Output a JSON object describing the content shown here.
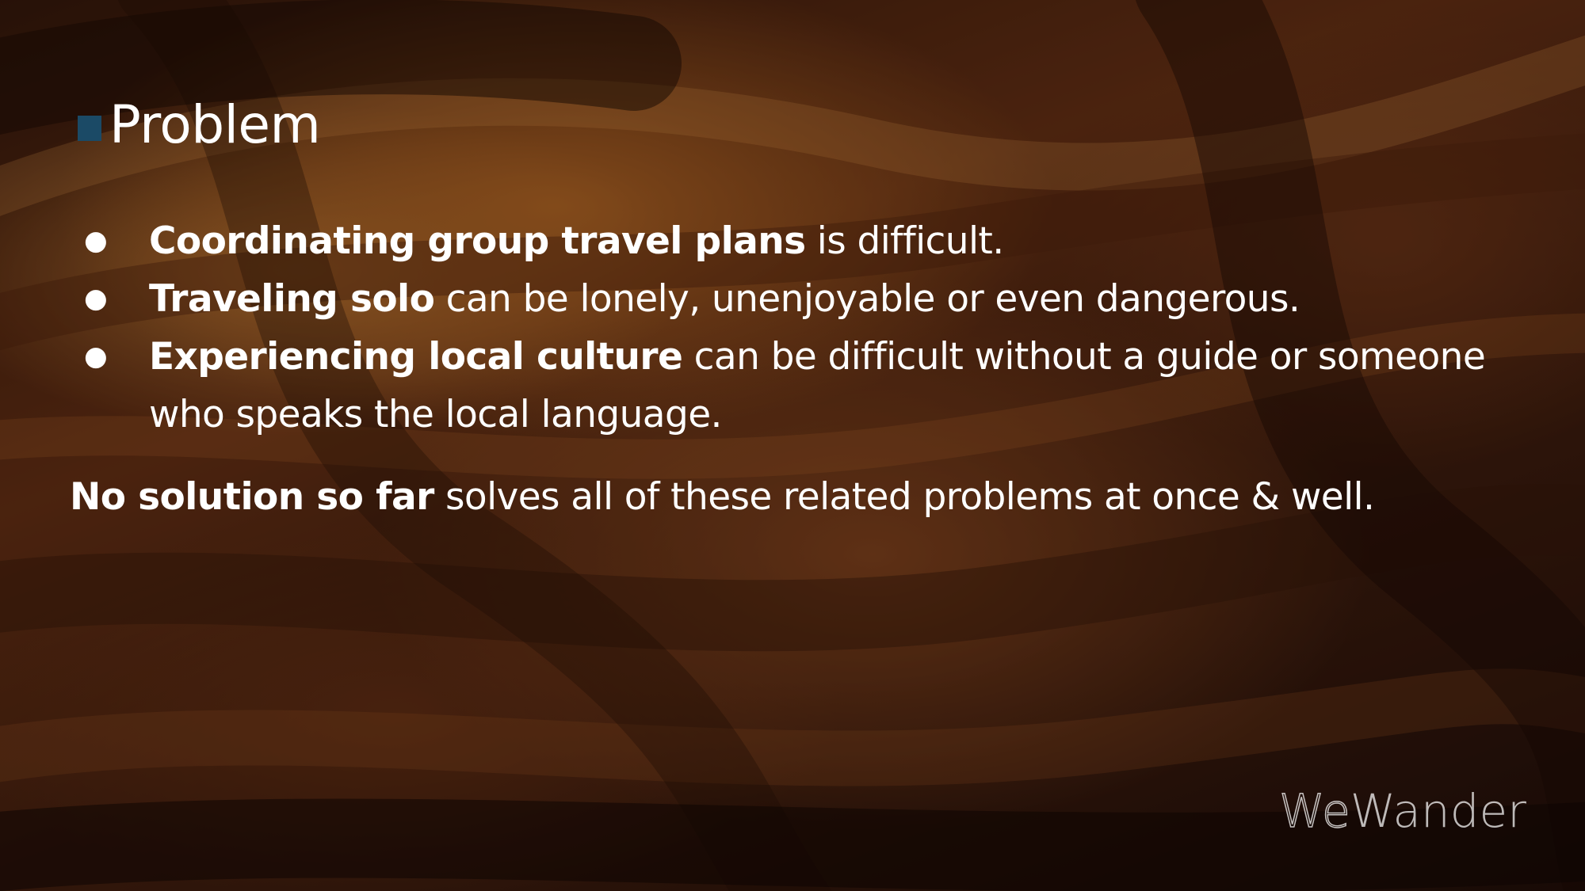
{
  "slide": {
    "title": "Problem",
    "marker_color": "#1b4a66",
    "bullets": [
      {
        "bold": "Coordinating group travel plans",
        "rest": " is difficult."
      },
      {
        "bold": "Traveling solo",
        "rest": " can be lonely, unenjoyable or even dangerous."
      },
      {
        "bold": "Experiencing local culture",
        "rest": " can be difficult without a guide or someone who speaks the local language."
      }
    ],
    "bullet_glyph": "●",
    "summary": {
      "bold": "No solution so far",
      "rest": " solves all of these related problems at once & well."
    },
    "logo": {
      "part1": "We",
      "part2": "Wander"
    }
  }
}
